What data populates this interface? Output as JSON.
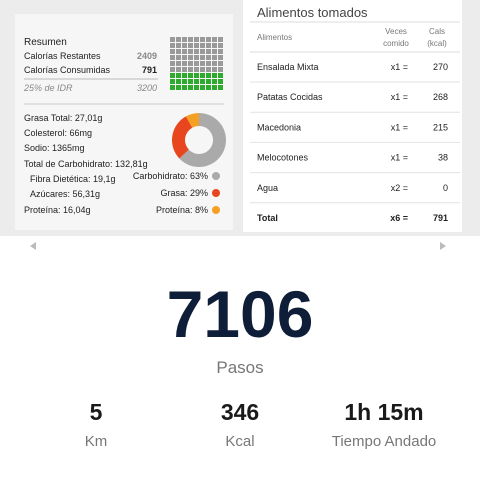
{
  "summary": {
    "title": "Resumen",
    "rows": [
      {
        "label": "Calorías Restantes",
        "value": 2409
      },
      {
        "label": "Calorías Consumidas",
        "value": 791
      }
    ],
    "idr": {
      "label": "25% de IDR",
      "value": 3200
    }
  },
  "nutrients": [
    "Grasa Total: 27,01g",
    "Colesterol: 66mg",
    "Sodio: 1365mg",
    "Total de Carbohidrato: 132,81g",
    "Fibra Dietética: 19,1g",
    "Azúcares: 56,31g",
    "Proteína: 16,04g"
  ],
  "macros": [
    {
      "name": "Carbohidrato:",
      "value": 63,
      "value_label": "63%",
      "color": "#aaaaaa"
    },
    {
      "name": "Grasa:",
      "value": 29,
      "value_label": "29%",
      "color": "#e8461e"
    },
    {
      "name": "Proteína:",
      "value": 8,
      "value_label": "8%",
      "color": "#f4a025"
    }
  ],
  "foods": {
    "title": "Alimentos tomados",
    "header": [
      "Alimentos",
      "Veces comido",
      "Cals (kcal)"
    ],
    "header_lines": [
      [
        "Alimentos"
      ],
      [
        "Veces",
        "comido"
      ],
      [
        "Cals",
        "(kcal)"
      ]
    ],
    "rows": [
      [
        "Ensalada Mixta",
        "x1 =",
        270
      ],
      [
        "Patatas Cocidas",
        "x1 =",
        268
      ],
      [
        "Macedonia",
        "x1 =",
        215
      ],
      [
        "Melocotones",
        "x1 =",
        38
      ],
      [
        "Agua",
        "x2 =",
        0
      ],
      [
        "Total",
        "x6 =",
        791
      ]
    ]
  },
  "steps": {
    "value": 7106,
    "label": "Pasos"
  },
  "stats": [
    {
      "value": "5",
      "label": "Km"
    },
    {
      "value": "346",
      "label": "Kcal"
    },
    {
      "value": "1h 15m",
      "label": "Tiempo Andado"
    }
  ]
}
